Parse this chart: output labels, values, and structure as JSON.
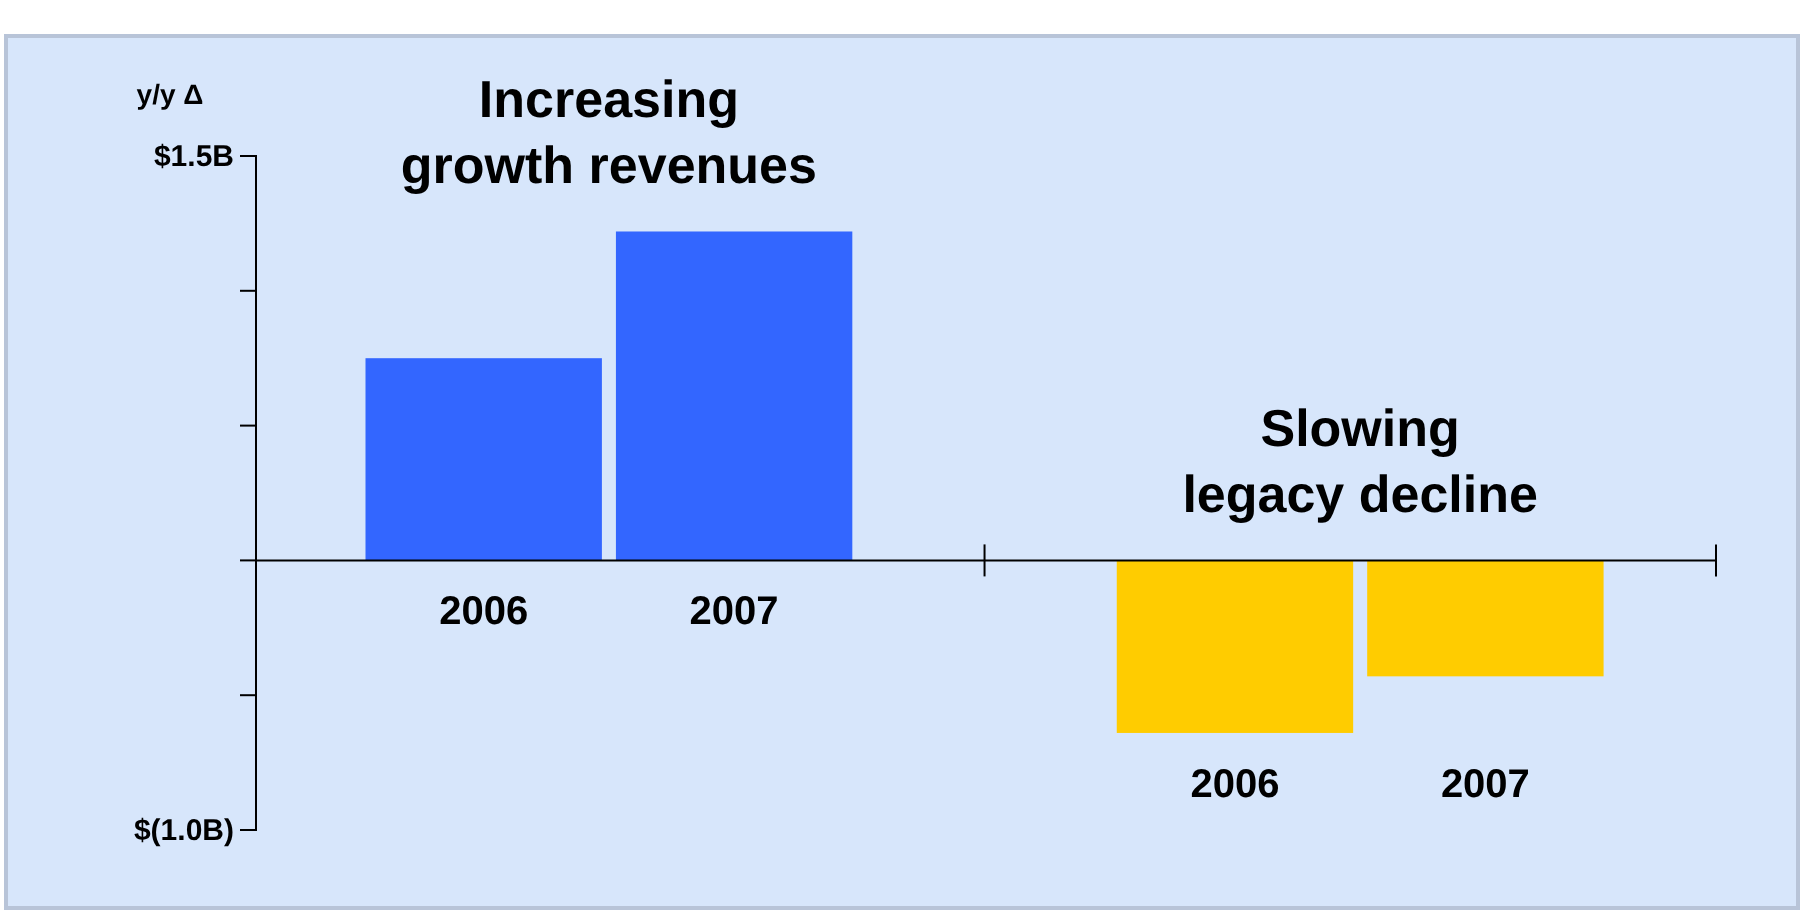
{
  "chart_data": {
    "type": "bar",
    "ylabel": "y/y Δ",
    "categories": [
      "2006",
      "2007",
      null,
      "2006",
      "2007"
    ],
    "values": [
      0.75,
      1.22,
      null,
      -0.64,
      -0.43
    ],
    "colors": [
      "#3366ff",
      "#3366ff",
      null,
      "#ffcc00",
      "#ffcc00"
    ],
    "ylim": [
      -1.0,
      1.5
    ],
    "yticks": [
      {
        "value": 1.5,
        "label": "$1.5B"
      },
      {
        "value": 1.0,
        "label": null
      },
      {
        "value": 0.5,
        "label": null
      },
      {
        "value": 0,
        "label": null
      },
      {
        "value": -0.5,
        "label": null
      },
      {
        "value": -1.0,
        "label": "$(1.0B)"
      }
    ],
    "annotations": [
      "Increasing\ngrowth revenues",
      "Slowing\nlegacy decline"
    ],
    "grid": false
  }
}
